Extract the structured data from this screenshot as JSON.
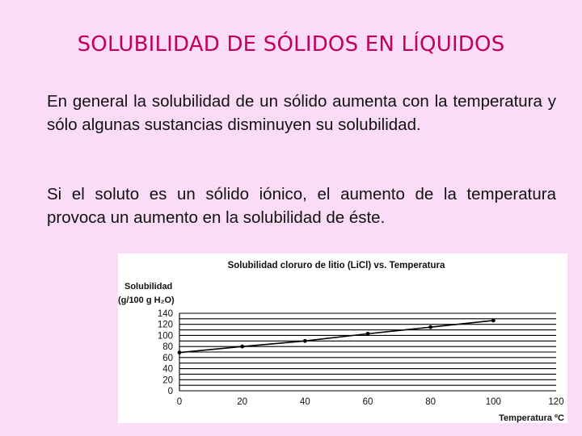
{
  "slide": {
    "title": "SOLUBILIDAD DE SÓLIDOS EN LÍQUIDOS",
    "paragraph1": "En general la solubilidad de un sólido aumenta con la temperatura y sólo algunas sustancias disminuyen su solubilidad.",
    "paragraph2": "Si el soluto es un sólido iónico, el aumento de la temperatura provoca un aumento en la solubilidad de éste."
  },
  "chart_data": {
    "type": "line",
    "title": "Solubilidad cloruro de litio (LiCl) vs. Temperatura",
    "ylabel_line1": "Solubilidad",
    "ylabel_line2": "(g/100 g H₂O)",
    "xlabel": "Temperatura ºC",
    "x": [
      0,
      20,
      40,
      60,
      80,
      100
    ],
    "y": [
      69,
      80,
      90,
      103,
      115,
      127
    ],
    "xlim": [
      0,
      120
    ],
    "ylim": [
      0,
      140
    ],
    "xticks": [
      0,
      20,
      40,
      60,
      80,
      100,
      120
    ],
    "yticks": [
      0,
      20,
      40,
      60,
      80,
      100,
      120,
      140
    ],
    "ygrid_step": 10,
    "grid": "horizontal",
    "line_color": "#000000"
  }
}
